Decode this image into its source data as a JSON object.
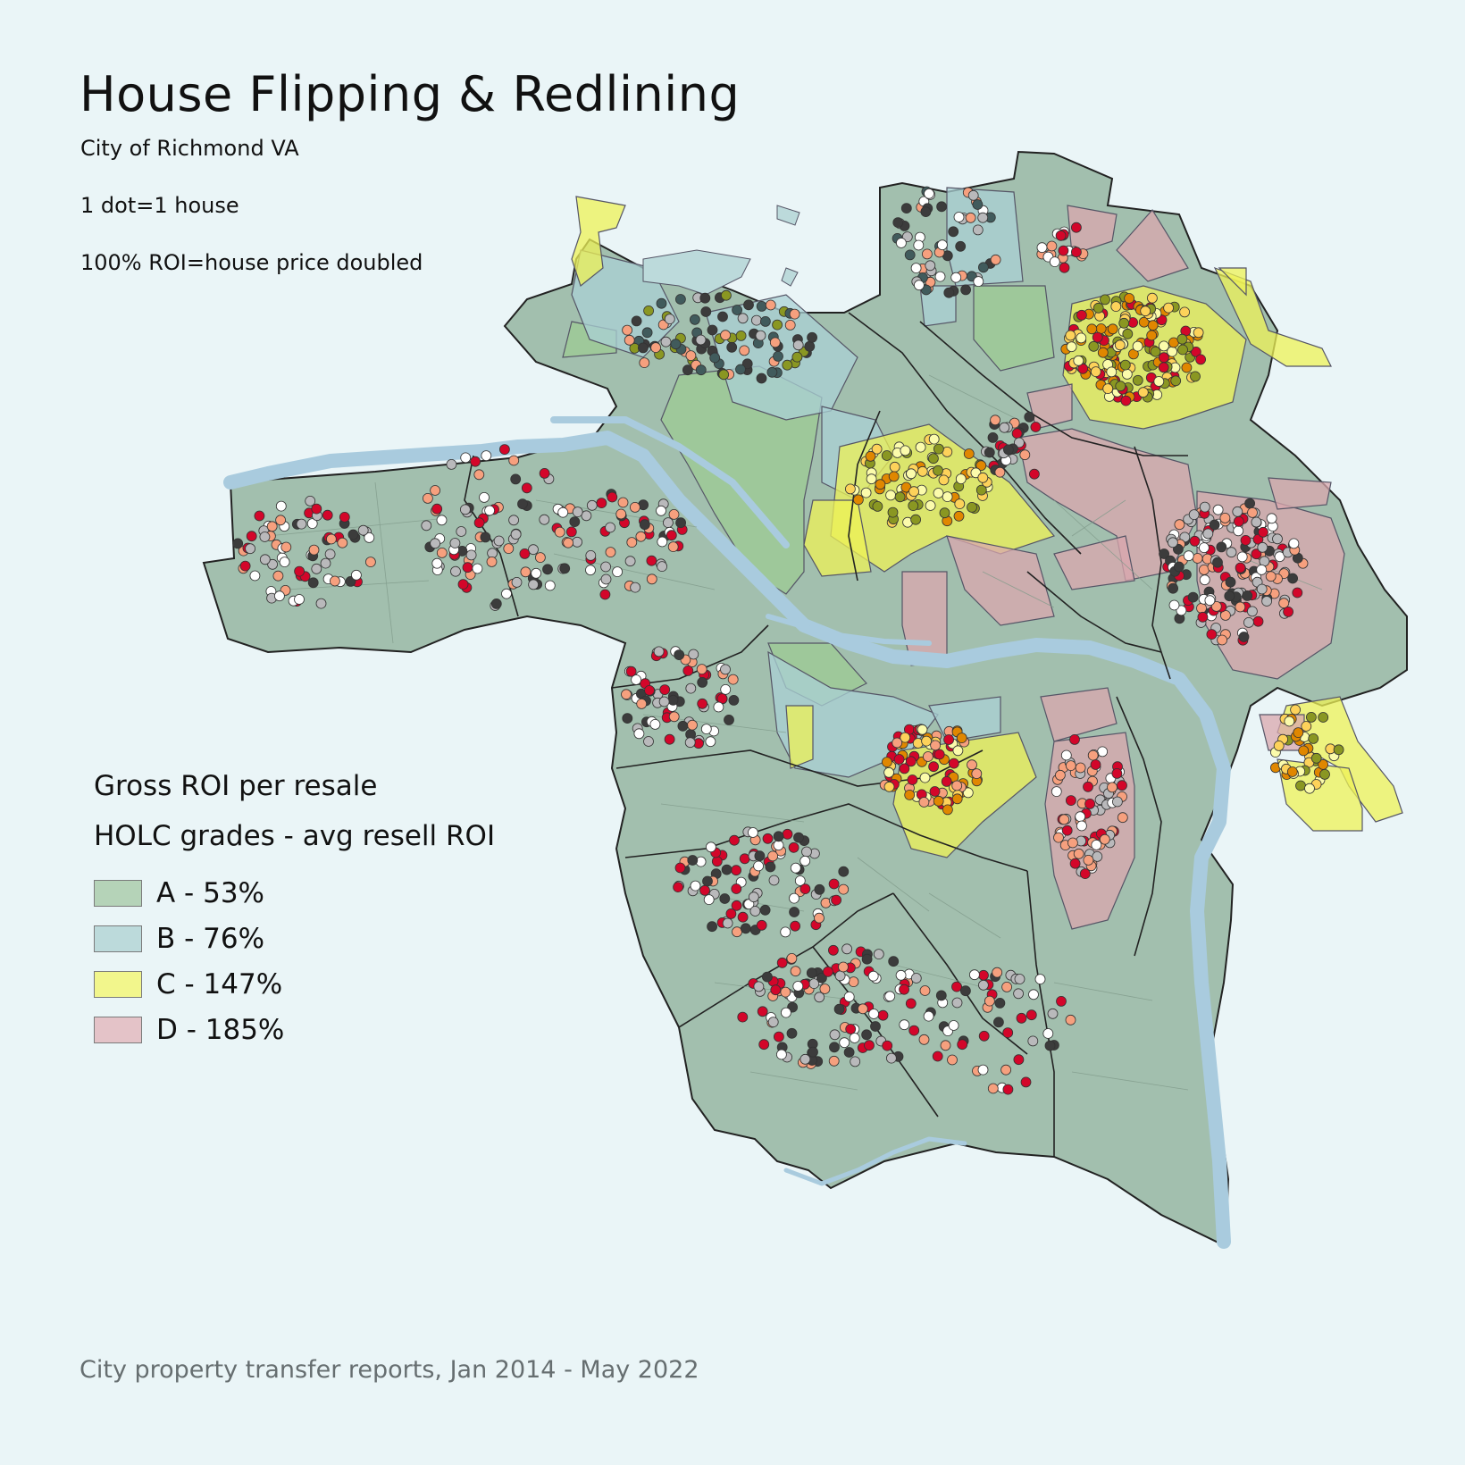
{
  "title": "House Flipping & Redlining",
  "notes": {
    "city": "City of Richmond VA",
    "dot": "1 dot=1 house",
    "roi": "100% ROI=house price doubled"
  },
  "legend": {
    "heading_roi": "Gross ROI per resale",
    "heading_holc": "HOLC grades - avg resell ROI",
    "items": [
      {
        "label": "A - 53%",
        "color": "#b5d3b8"
      },
      {
        "label": "B - 76%",
        "color": "#bcdadb"
      },
      {
        "label": "C - 147%",
        "color": "#f2f68c"
      },
      {
        "label": "D - 185%",
        "color": "#e4c3c8"
      }
    ]
  },
  "source": "City property transfer reports, Jan 2014 - May 2022",
  "colors": {
    "background": "#eaf5f7",
    "city_fill": "#a2bfae",
    "water": "#a9cbde",
    "district_line": "#222222",
    "roi_dots": [
      "#ffffff",
      "#b9b9bb",
      "#3c3c3c",
      "#f6a07e",
      "#d3062a",
      "#e08700",
      "#fdd25a",
      "#fbfbab",
      "#8a9722",
      "#415b5c"
    ]
  }
}
